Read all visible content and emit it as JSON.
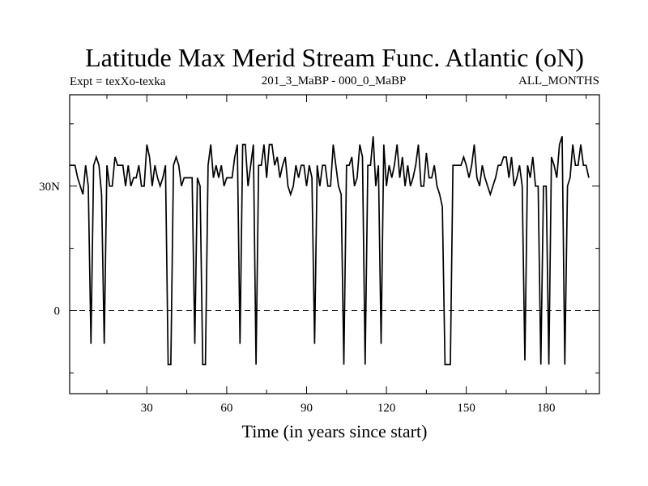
{
  "chart_data": {
    "type": "line",
    "title": "Latitude Max Merid Stream Func. Atlantic (oN)",
    "subtitle_left": "Expt = texXo-texka",
    "subtitle_center": "201_3_MaBP - 000_0_MaBP",
    "subtitle_right": "ALL_MONTHS",
    "xlabel": "Time (in years since start)",
    "ylabel": "",
    "xlim": [
      1,
      200
    ],
    "ylim": [
      -20,
      52
    ],
    "x_ticks": [
      30,
      60,
      90,
      120,
      150,
      180
    ],
    "x_tick_labels": [
      "30",
      "60",
      "90",
      "120",
      "150",
      "180"
    ],
    "y_ticks": [
      0,
      30
    ],
    "y_tick_labels": [
      "0",
      "30N"
    ],
    "zero_line": 0,
    "series": [
      {
        "name": "Latitude Max Merid Stream Func.",
        "x_start": 1,
        "x_step": 1,
        "values": [
          35,
          35,
          35,
          32,
          30,
          28,
          35,
          30,
          -8,
          35,
          37,
          35,
          28,
          -8,
          35,
          30,
          30,
          37,
          35,
          35,
          35,
          30,
          35,
          30,
          32,
          32,
          35,
          30,
          30,
          40,
          37,
          30,
          35,
          32,
          30,
          32,
          35,
          -13,
          -13,
          35,
          37,
          35,
          30,
          32,
          32,
          32,
          32,
          -8,
          32,
          30,
          -13,
          -13,
          35,
          40,
          32,
          35,
          32,
          35,
          30,
          32,
          32,
          32,
          37,
          40,
          -8,
          40,
          40,
          30,
          35,
          40,
          -13,
          35,
          35,
          40,
          32,
          40,
          40,
          35,
          37,
          32,
          35,
          37,
          30,
          28,
          30,
          35,
          32,
          35,
          35,
          30,
          35,
          32,
          -8,
          35,
          30,
          35,
          35,
          30,
          30,
          40,
          35,
          30,
          28,
          -13,
          35,
          35,
          37,
          30,
          32,
          40,
          37,
          -13,
          35,
          35,
          42,
          30,
          35,
          -8,
          40,
          30,
          35,
          32,
          35,
          40,
          32,
          37,
          30,
          35,
          30,
          32,
          35,
          40,
          30,
          30,
          38,
          32,
          32,
          35,
          30,
          28,
          25,
          -13,
          -13,
          -13,
          35,
          35,
          35,
          35,
          37,
          35,
          32,
          35,
          40,
          32,
          30,
          35,
          32,
          30,
          28,
          30,
          32,
          35,
          35,
          37,
          37,
          32,
          37,
          30,
          32,
          35,
          30,
          -12,
          35,
          32,
          37,
          30,
          30,
          -13,
          30,
          30,
          -13,
          37,
          35,
          32,
          40,
          42,
          -13,
          30,
          32,
          40,
          35,
          35,
          40,
          35,
          35,
          32
        ]
      }
    ]
  }
}
